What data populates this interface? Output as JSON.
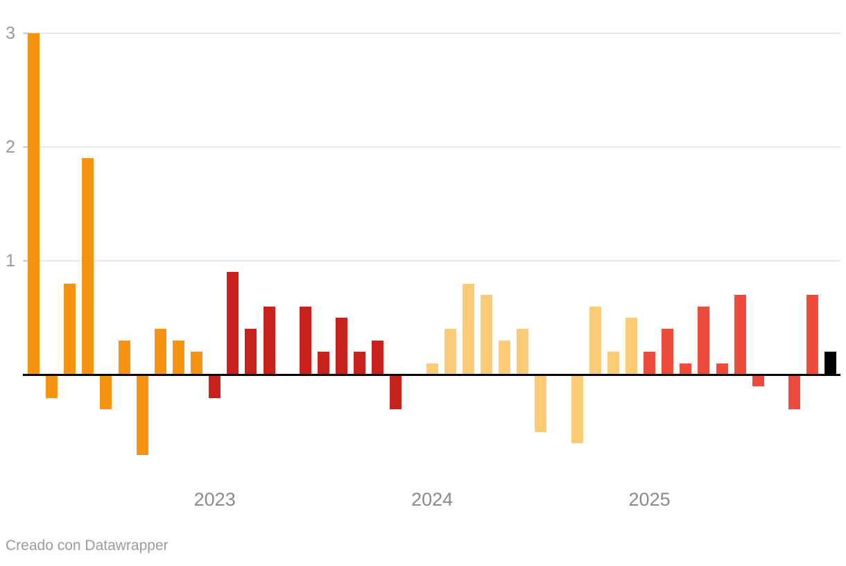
{
  "chart_data": {
    "type": "bar",
    "title": "",
    "xlabel": "",
    "ylabel": "",
    "y_ticks": [
      1,
      2,
      3
    ],
    "ylim": [
      -0.85,
      3.1
    ],
    "x_tick_labels": [
      "2023",
      "2024",
      "2025"
    ],
    "baseline": 0,
    "grid": true,
    "legend_position": "none",
    "groups": [
      {
        "label": "",
        "color": "#F69311",
        "values": [
          3.0,
          -0.2,
          0.8,
          1.9,
          -0.3,
          0.3,
          -0.7,
          0.4,
          0.3,
          0.2
        ]
      },
      {
        "label": "2023",
        "color": "#C9211C",
        "values": [
          -0.2,
          0.9,
          0.4,
          0.6,
          0,
          0.6,
          0.2,
          0.5,
          0.2,
          0.3,
          -0.3,
          0
        ]
      },
      {
        "label": "2024",
        "color": "#FCCB74",
        "values": [
          0.1,
          0.4,
          0.8,
          0.7,
          0.3,
          0.4,
          -0.5,
          0,
          -0.6,
          0.6,
          0.2,
          0.5
        ]
      },
      {
        "label": "2025",
        "color": "#EF4B3C",
        "values": [
          0.2,
          0.4,
          0.1,
          0.6,
          0.1,
          0.7,
          -0.1,
          0,
          -0.3,
          0.7
        ]
      },
      {
        "label": "",
        "color": "#000000",
        "values": [
          0.2
        ]
      }
    ]
  },
  "footer": {
    "attribution": "Creado con Datawrapper"
  },
  "colors": {
    "background": "#FFFFFF",
    "grid": "#E9E9E9",
    "tick": "#C9C9C9",
    "axis_label": "#999999",
    "year_label": "#8A8A8A",
    "baseline": "#000000",
    "footer_text": "#9A9A9A"
  }
}
